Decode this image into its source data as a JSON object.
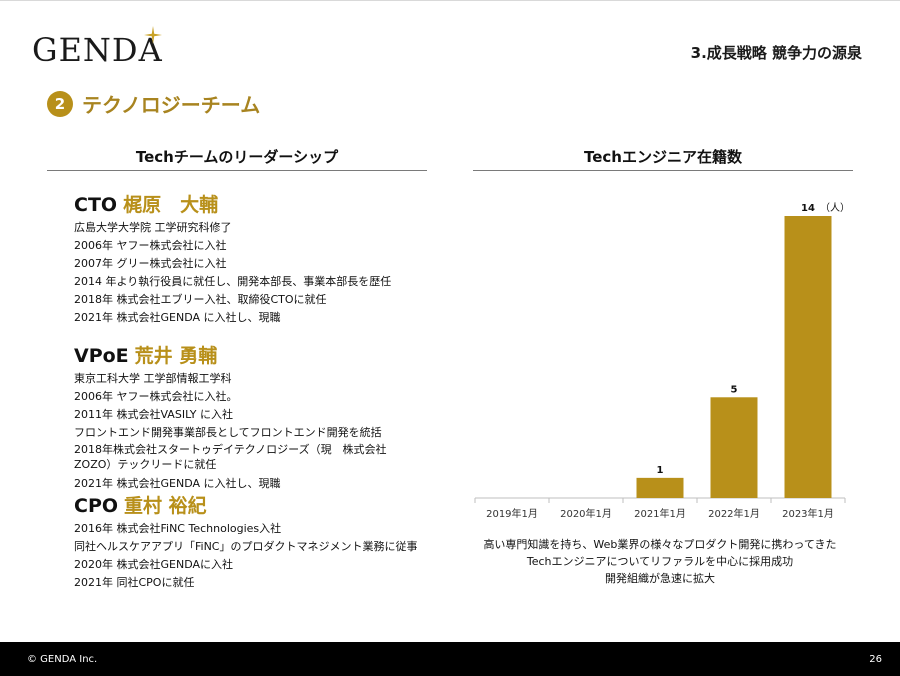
{
  "header": {
    "logo_text": "GENDA",
    "section": "3.成長戦略 競争力の源泉"
  },
  "title": {
    "badge": "2",
    "text": "テクノロジーチーム"
  },
  "left": {
    "heading": "Techチームのリーダーシップ",
    "leaders": [
      {
        "role": "CTO",
        "name": "梶原　大輔",
        "history": [
          "広島大学大学院 工学研究科修了",
          "2006年 ヤフー株式会社に入社",
          "2007年 グリー株式会社に入社",
          "2014 年より執行役員に就任し、開発本部長、事業本部長を歴任",
          "2018年 株式会社エブリー入社、取締役CTOに就任",
          "2021年 株式会社GENDA に入社し、現職"
        ]
      },
      {
        "role": "VPoE",
        "name": "荒井 勇輔",
        "history": [
          "東京工科大学 工学部情報工学科",
          "2006年 ヤフー株式会社に入社。",
          "2011年 株式会社VASILY に入社",
          "フロントエンド開発事業部長としてフロントエンド開発を統括",
          "2018年株式会社スタートゥデイテクノロジーズ（現　株式会社ZOZO）テックリードに就任",
          "2021年 株式会社GENDA に入社し、現職"
        ]
      },
      {
        "role": "CPO",
        "name": "重村 裕紀",
        "history": [
          "2016年 株式会社FiNC Technologies入社",
          "同社ヘルスケアアプリ「FiNC」のプロダクトマネジメント業務に従事",
          "2020年 株式会社GENDAに入社",
          "2021年 同社CPOに就任"
        ]
      }
    ]
  },
  "right": {
    "heading": "Techエンジニア在籍数",
    "caption": [
      "高い専門知識を持ち、Web業界の様々なプロダクト開発に携わってきた",
      "Techエンジニアについてリファラルを中心に採用成功",
      "開発組織が急速に拡大"
    ]
  },
  "chart_data": {
    "type": "bar",
    "categories": [
      "2019年1月",
      "2020年1月",
      "2021年1月",
      "2022年1月",
      "2023年1月"
    ],
    "values": [
      0,
      0,
      1,
      5,
      14
    ],
    "data_labels": [
      "",
      "",
      "1",
      "5",
      "14"
    ],
    "unit": "（人）",
    "title": "Techエンジニア在籍数",
    "bar_color": "#b8901a",
    "ylim": [
      0,
      14
    ]
  },
  "footer": {
    "copyright": "© GENDA Inc.",
    "page": "26"
  },
  "colors": {
    "accent": "#b8901a",
    "footer": "#000000"
  }
}
